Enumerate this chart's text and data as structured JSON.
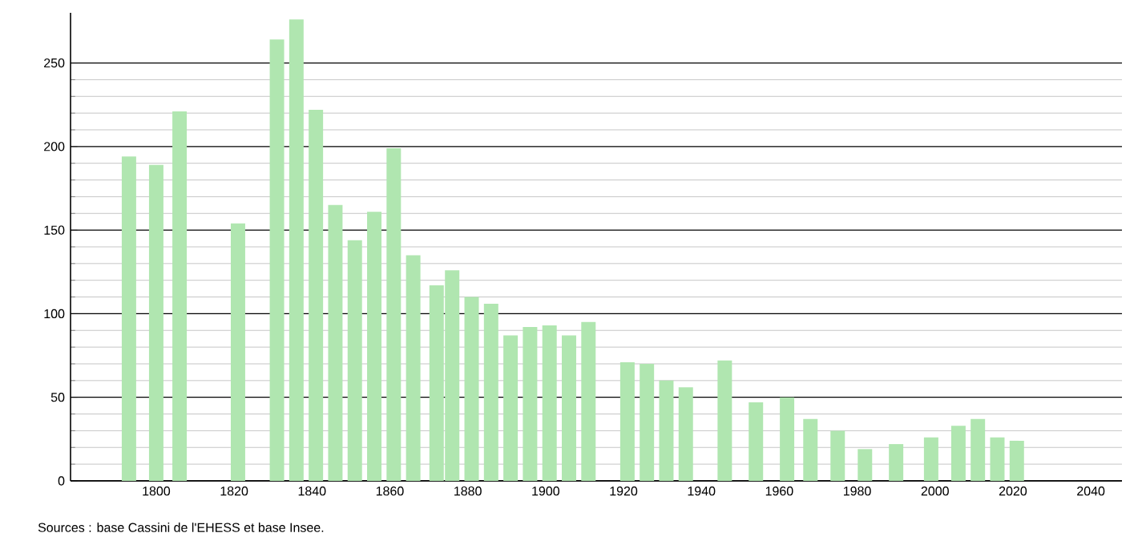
{
  "chart_data": {
    "type": "bar",
    "x": [
      1793,
      1800,
      1806,
      1821,
      1831,
      1836,
      1841,
      1846,
      1851,
      1856,
      1861,
      1866,
      1872,
      1876,
      1881,
      1886,
      1891,
      1896,
      1901,
      1906,
      1911,
      1921,
      1926,
      1931,
      1936,
      1946,
      1954,
      1962,
      1968,
      1975,
      1982,
      1990,
      1999,
      2006,
      2011,
      2016,
      2021
    ],
    "values": [
      194,
      189,
      221,
      154,
      264,
      276,
      222,
      165,
      144,
      161,
      199,
      135,
      117,
      126,
      110,
      106,
      87,
      92,
      93,
      87,
      95,
      71,
      70,
      60,
      56,
      72,
      47,
      50,
      37,
      30,
      19,
      22,
      26,
      33,
      37,
      26,
      24
    ],
    "color": "#b0e6b0",
    "xlim": [
      1778,
      2048
    ],
    "xticks": [
      1800,
      1820,
      1840,
      1860,
      1880,
      1900,
      1920,
      1940,
      1960,
      1980,
      2000,
      2020,
      2040
    ],
    "ylim": [
      0,
      280
    ],
    "yticks": [
      0,
      50,
      100,
      150,
      200,
      250
    ],
    "grid": "y",
    "annotations": [
      "Sources : base Cassini de l'EHESS et base Insee."
    ]
  }
}
